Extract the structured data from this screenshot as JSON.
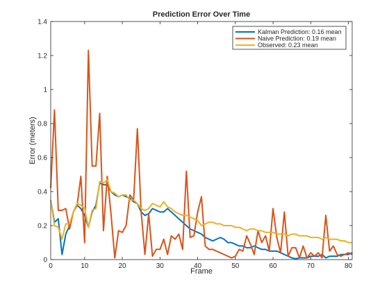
{
  "chart_data": {
    "type": "line",
    "title": "Prediction Error Over Time",
    "xlabel": "Frame",
    "ylabel": "Error (meters)",
    "xlim": [
      1,
      81
    ],
    "ylim": [
      0,
      1.4
    ],
    "xticks": [
      10,
      20,
      30,
      40,
      50,
      60,
      70,
      80
    ],
    "yticks": [
      0,
      0.2,
      0.4,
      0.6,
      0.8,
      1,
      1.2,
      1.4
    ],
    "ytick_labels": [
      "0",
      "0.2",
      "0.4",
      "0.6",
      "0.8",
      "1",
      "1.2",
      "1.4"
    ],
    "grid": false,
    "legend_position": "top-right",
    "series": [
      {
        "name": "Kalman Prediction: 0.16 mean",
        "color": "#0072bd",
        "x": [
          1,
          2,
          3,
          4,
          5,
          6,
          7,
          8,
          9,
          10,
          11,
          12,
          13,
          14,
          15,
          16,
          17,
          18,
          19,
          20,
          21,
          22,
          23,
          24,
          25,
          26,
          27,
          28,
          29,
          30,
          31,
          32,
          33,
          34,
          35,
          36,
          37,
          38,
          39,
          40,
          41,
          42,
          43,
          44,
          45,
          46,
          47,
          48,
          49,
          50,
          51,
          52,
          53,
          54,
          55,
          56,
          57,
          58,
          59,
          60,
          61,
          62,
          63,
          64,
          65,
          66,
          67,
          68,
          69,
          70,
          71,
          72,
          73,
          74,
          75,
          76,
          77,
          78,
          79,
          80,
          81
        ],
        "values": [
          0.35,
          0.22,
          0.24,
          0.03,
          0.15,
          0.2,
          0.28,
          0.32,
          0.3,
          0.26,
          0.19,
          0.28,
          0.32,
          0.45,
          0.44,
          0.44,
          0.4,
          0.38,
          0.37,
          0.38,
          0.37,
          0.36,
          0.34,
          0.33,
          0.28,
          0.26,
          0.27,
          0.3,
          0.29,
          0.28,
          0.28,
          0.3,
          0.28,
          0.26,
          0.24,
          0.22,
          0.2,
          0.18,
          0.17,
          0.16,
          0.15,
          0.13,
          0.12,
          0.11,
          0.12,
          0.13,
          0.12,
          0.1,
          0.1,
          0.09,
          0.08,
          0.08,
          0.07,
          0.07,
          0.08,
          0.07,
          0.06,
          0.06,
          0.05,
          0.05,
          0.05,
          0.04,
          0.03,
          0.02,
          0.01,
          0.005,
          0.01,
          0.01,
          0.01,
          0.02,
          0.02,
          0.02,
          0.03,
          0.01,
          0.02,
          0.02,
          0.02,
          0.03,
          0.03,
          0.03,
          0.04
        ]
      },
      {
        "name": "Naive Prediction: 0.19 mean",
        "color": "#d95319",
        "x": [
          1,
          2,
          3,
          4,
          5,
          6,
          7,
          8,
          9,
          10,
          11,
          12,
          13,
          14,
          15,
          16,
          17,
          18,
          19,
          20,
          21,
          22,
          23,
          24,
          25,
          26,
          27,
          28,
          29,
          30,
          31,
          32,
          33,
          34,
          35,
          36,
          37,
          38,
          39,
          40,
          41,
          42,
          43,
          44,
          45,
          46,
          47,
          48,
          49,
          50,
          51,
          52,
          53,
          54,
          55,
          56,
          57,
          58,
          59,
          60,
          61,
          62,
          63,
          64,
          65,
          66,
          67,
          68,
          69,
          70,
          71,
          72,
          73,
          74,
          75,
          76,
          77,
          78,
          79,
          80,
          81
        ],
        "values": [
          0.42,
          0.88,
          0.29,
          0.29,
          0.3,
          0.18,
          0.28,
          0.32,
          0.49,
          0.1,
          1.23,
          0.55,
          0.55,
          0.86,
          0.17,
          0.49,
          0.27,
          0.01,
          0.17,
          0.16,
          0.2,
          0.38,
          0.35,
          0.77,
          0.28,
          0.03,
          0.27,
          0.02,
          0.06,
          0.06,
          0.12,
          0.03,
          0.14,
          0.12,
          0.15,
          0.06,
          0.52,
          0.13,
          0.14,
          0.28,
          0.37,
          0.08,
          0.06,
          0.06,
          0.05,
          0.04,
          0.03,
          0.02,
          0.01,
          0.02,
          0.06,
          0.05,
          0.14,
          0.09,
          0.03,
          0.17,
          0.1,
          0.14,
          0.05,
          0.3,
          0.13,
          0.04,
          0.28,
          0.02,
          0.07,
          0.07,
          0.01,
          0.08,
          0.01,
          0.04,
          0.02,
          0.04,
          0.01,
          0.26,
          0.05,
          0.08,
          0.03,
          0.02,
          0.03,
          0.04,
          0.03
        ]
      },
      {
        "name": "Observed: 0.23 mean",
        "color": "#edb120",
        "x": [
          1,
          2,
          3,
          4,
          5,
          6,
          7,
          8,
          9,
          10,
          11,
          12,
          13,
          14,
          15,
          16,
          17,
          18,
          19,
          20,
          21,
          22,
          23,
          24,
          25,
          26,
          27,
          28,
          29,
          30,
          31,
          32,
          33,
          34,
          35,
          36,
          37,
          38,
          39,
          40,
          41,
          42,
          43,
          44,
          45,
          46,
          47,
          48,
          49,
          50,
          51,
          52,
          53,
          54,
          55,
          56,
          57,
          58,
          59,
          60,
          61,
          62,
          63,
          64,
          65,
          66,
          67,
          68,
          69,
          70,
          71,
          72,
          73,
          74,
          75,
          76,
          77,
          78,
          79,
          80,
          81
        ],
        "values": [
          0.35,
          0.2,
          0.19,
          0.12,
          0.21,
          0.21,
          0.28,
          0.33,
          0.32,
          0.3,
          0.19,
          0.29,
          0.3,
          0.46,
          0.45,
          0.47,
          0.4,
          0.39,
          0.37,
          0.38,
          0.38,
          0.35,
          0.35,
          0.33,
          0.3,
          0.29,
          0.3,
          0.33,
          0.32,
          0.31,
          0.34,
          0.31,
          0.3,
          0.28,
          0.27,
          0.26,
          0.26,
          0.25,
          0.24,
          0.23,
          0.2,
          0.21,
          0.22,
          0.22,
          0.21,
          0.21,
          0.2,
          0.2,
          0.2,
          0.19,
          0.19,
          0.18,
          0.17,
          0.18,
          0.18,
          0.17,
          0.17,
          0.16,
          0.16,
          0.16,
          0.15,
          0.15,
          0.15,
          0.14,
          0.15,
          0.15,
          0.14,
          0.14,
          0.14,
          0.13,
          0.13,
          0.13,
          0.12,
          0.13,
          0.12,
          0.12,
          0.12,
          0.11,
          0.11,
          0.1,
          0.1
        ]
      }
    ]
  }
}
